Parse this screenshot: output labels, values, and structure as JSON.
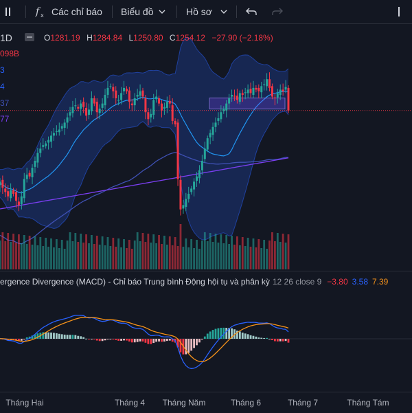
{
  "toolbar": {
    "indicators_label": "Các chỉ báo",
    "chart_label": "Biểu đồ",
    "profile_label": "Hồ sơ"
  },
  "legend": {
    "interval": "1D",
    "open_label": "O",
    "open": "1281.19",
    "high_label": "H",
    "high": "1284.84",
    "low_label": "L",
    "low": "1250.80",
    "close_label": "C",
    "close": "1254.12",
    "change": "−27.90 (−2.18%)",
    "volume": "098B",
    "side_values": [
      "3",
      "4",
      "37",
      "77"
    ]
  },
  "macd": {
    "title": "ergence Divergence (MACD) - Chỉ báo Trung bình Động hội tụ và phân kỳ",
    "params": "12 26 close 9",
    "v_hist": "−3.80",
    "v_macd": "3.58",
    "v_signal": "7.39"
  },
  "time_axis": [
    "Tháng Hai",
    "Tháng 4",
    "Tháng Năm",
    "Tháng 6",
    "Tháng 7",
    "Tháng Tám"
  ],
  "colors": {
    "up": "#26a69a",
    "down": "#f23645",
    "band": "#2962ff",
    "ma_slow": "#7b3ff2",
    "signal": "#f7931a",
    "background": "#131722"
  },
  "chart_data": {
    "type": "line",
    "closes": [
      1168,
      1172,
      1165,
      1160,
      1155,
      1162,
      1158,
      1150,
      1145,
      1155,
      1175,
      1180,
      1178,
      1188,
      1196,
      1205,
      1210,
      1214,
      1216,
      1220,
      1225,
      1228,
      1230,
      1232,
      1236,
      1240,
      1246,
      1252,
      1258,
      1260,
      1256,
      1262,
      1258,
      1248,
      1255,
      1268,
      1262,
      1252,
      1256,
      1262,
      1272,
      1280,
      1282,
      1276,
      1268,
      1266,
      1274,
      1280,
      1276,
      1264,
      1260,
      1268,
      1272,
      1276,
      1270,
      1252,
      1244,
      1250,
      1266,
      1270,
      1262,
      1254,
      1258,
      1264,
      1262,
      1242,
      1238,
      1175,
      1140,
      1145,
      1152,
      1158,
      1164,
      1172,
      1178,
      1185,
      1196,
      1210,
      1222,
      1228,
      1235,
      1240,
      1245,
      1252,
      1256,
      1262,
      1268,
      1272,
      1270,
      1266,
      1274,
      1272,
      1275,
      1278,
      1274,
      1280,
      1278,
      1276,
      1282,
      1284,
      1290,
      1280,
      1270,
      1268,
      1274,
      1278,
      1276,
      1281,
      1254
    ]
  }
}
